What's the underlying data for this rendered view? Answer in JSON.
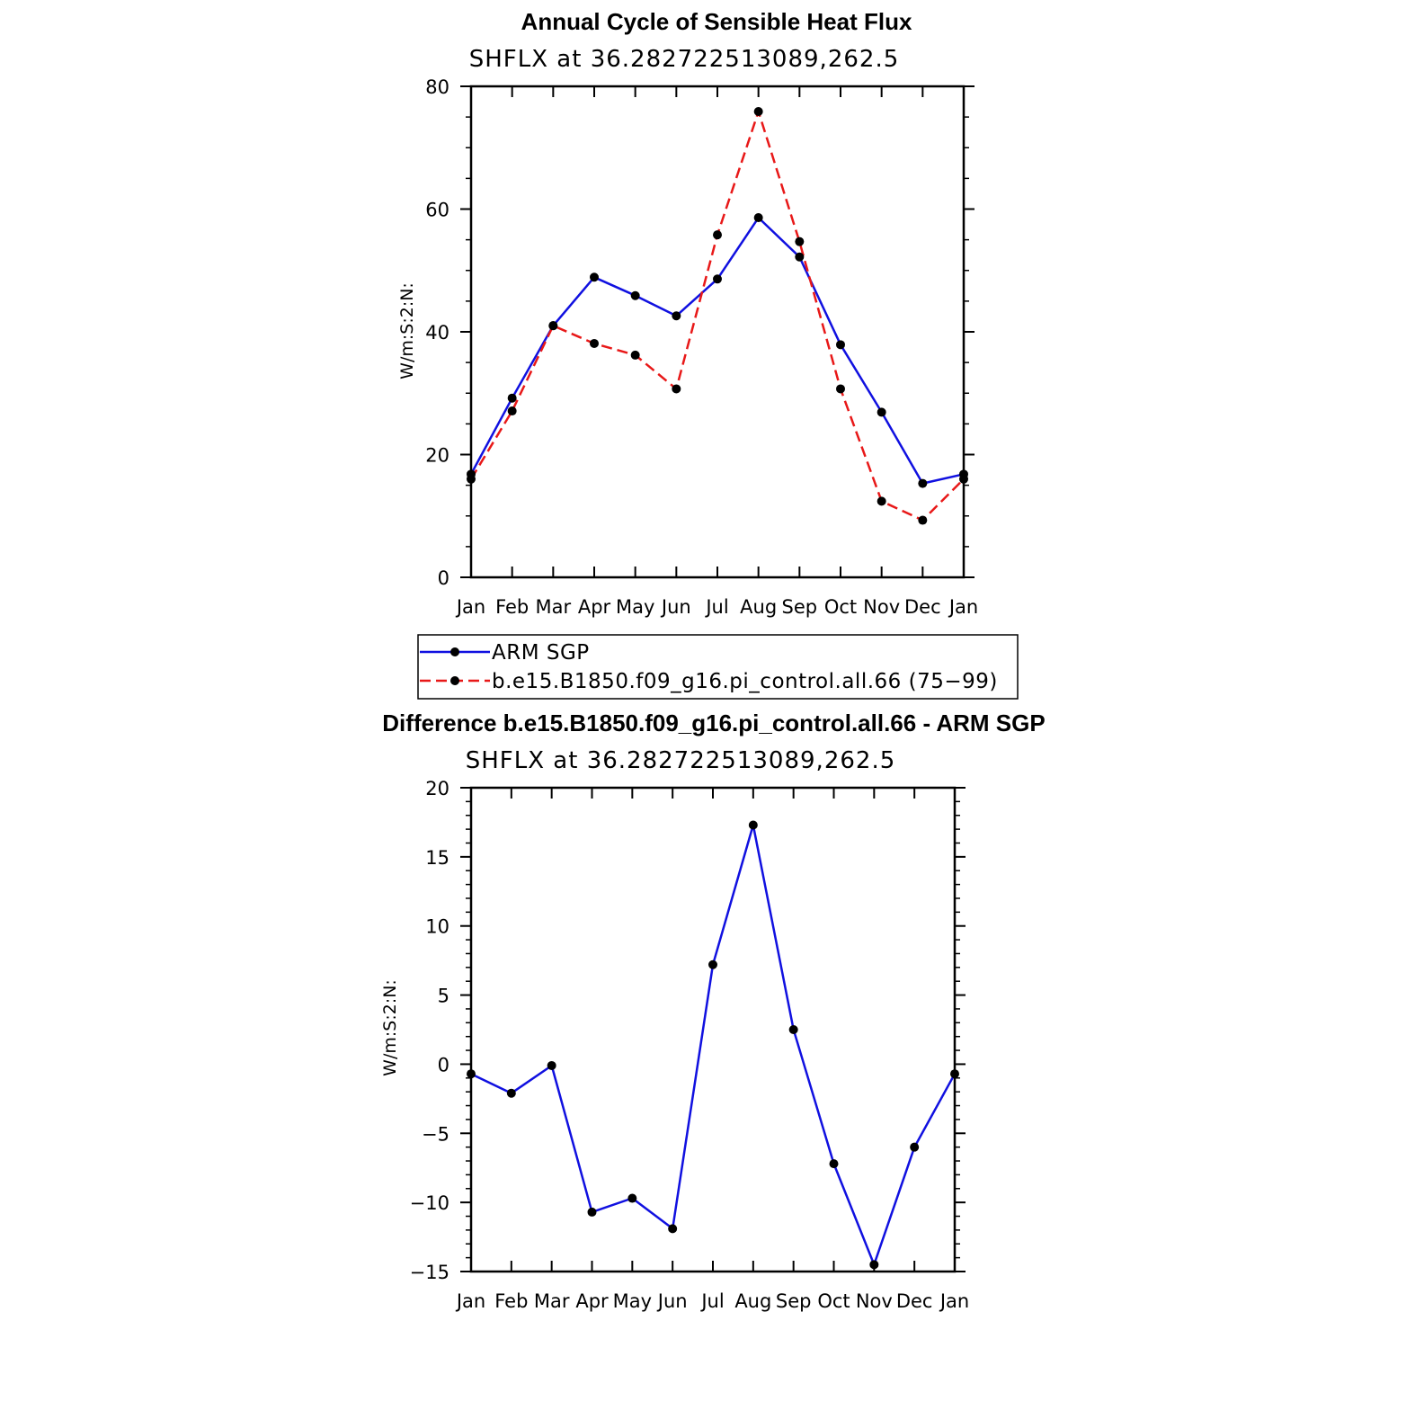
{
  "chart_data": [
    {
      "type": "line",
      "title": "Annual Cycle of Sensible Heat Flux",
      "subtitle": "SHFLX  at  36.282722513089,262.5",
      "ylabel": "W/m:S:2:N:",
      "categories": [
        "Jan",
        "Feb",
        "Mar",
        "Apr",
        "May",
        "Jun",
        "Jul",
        "Aug",
        "Sep",
        "Oct",
        "Nov",
        "Dec",
        "Jan"
      ],
      "ylim": [
        0,
        80
      ],
      "yticks": [
        "0",
        "20",
        "40",
        "60",
        "80"
      ],
      "series": [
        {
          "name": "ARM SGP",
          "color": "#1010e0",
          "dash": "solid",
          "values": [
            16.8,
            29.2,
            41.0,
            48.9,
            45.9,
            42.6,
            48.6,
            58.6,
            52.2,
            37.9,
            26.9,
            15.3,
            16.8
          ]
        },
        {
          "name": "b.e15.B1850.f09_g16.pi_control.all.66 (75−99)",
          "color": "#e81818",
          "dash": "dashed",
          "values": [
            16.0,
            27.1,
            41.0,
            38.1,
            36.2,
            30.7,
            55.8,
            75.9,
            54.7,
            30.7,
            12.4,
            9.3,
            16.0
          ]
        }
      ]
    },
    {
      "type": "line",
      "title": "Difference b.e15.B1850.f09_g16.pi_control.all.66 - ARM SGP",
      "subtitle": "SHFLX  at  36.282722513089,262.5",
      "ylabel": "W/m:S:2:N:",
      "categories": [
        "Jan",
        "Feb",
        "Mar",
        "Apr",
        "May",
        "Jun",
        "Jul",
        "Aug",
        "Sep",
        "Oct",
        "Nov",
        "Dec",
        "Jan"
      ],
      "ylim": [
        -15,
        20
      ],
      "yticks": [
        "−15",
        "−10",
        "−5",
        "0",
        "5",
        "10",
        "15",
        "20"
      ],
      "series": [
        {
          "name": "Difference",
          "color": "#1010e0",
          "dash": "solid",
          "values": [
            -0.7,
            -2.1,
            -0.1,
            -10.7,
            -9.7,
            -11.9,
            7.2,
            17.3,
            2.5,
            -7.2,
            -14.5,
            -6.0,
            -0.7
          ]
        }
      ]
    }
  ]
}
